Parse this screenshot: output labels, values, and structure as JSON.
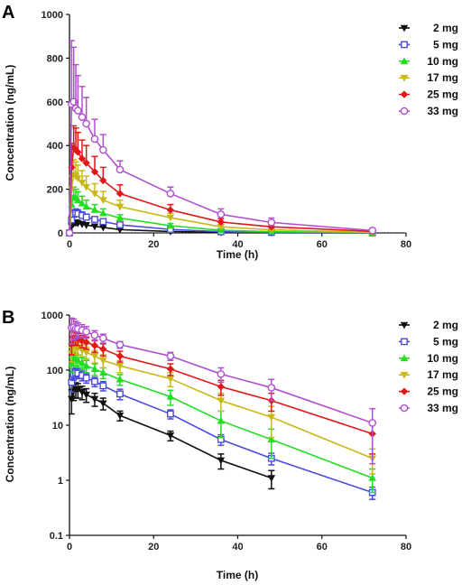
{
  "chart_data": [
    {
      "type": "line",
      "panel": "A",
      "xlabel": "Time (h)",
      "ylabel": "Concentration (ng/mL)",
      "xlim": [
        0,
        80
      ],
      "ylim": [
        0,
        1000
      ],
      "xticks": [
        0,
        20,
        40,
        60,
        80
      ],
      "yticks": [
        0,
        200,
        400,
        600,
        800,
        1000
      ],
      "yscale": "linear",
      "zero_line": "dotted",
      "legend_position": "top-right",
      "x": [
        0,
        0.5,
        1,
        1.5,
        2,
        3,
        4,
        6,
        8,
        12,
        24,
        36,
        48,
        72
      ],
      "series": [
        {
          "name": "2 mg",
          "color": "#111111",
          "marker": "triangle-down",
          "values": [
            0,
            30,
            42,
            45,
            44,
            40,
            36,
            30,
            25,
            15,
            6.5,
            2.3,
            1.1,
            0
          ],
          "errors": [
            0,
            14,
            14,
            14,
            13,
            11,
            10,
            8,
            6,
            3,
            1.3,
            0.7,
            0.4,
            0
          ]
        },
        {
          "name": "5 mg",
          "color": "#4a4ae0",
          "marker": "square-open",
          "values": [
            0,
            60,
            85,
            90,
            88,
            80,
            72,
            62,
            52,
            37,
            16,
            5.5,
            2.5,
            0.6
          ],
          "errors": [
            0,
            20,
            20,
            20,
            18,
            16,
            14,
            12,
            10,
            8,
            3,
            1.2,
            0.6,
            0.15
          ]
        },
        {
          "name": "10 mg",
          "color": "#22dd22",
          "marker": "triangle-up",
          "values": [
            0,
            130,
            165,
            160,
            150,
            135,
            120,
            105,
            90,
            68,
            33,
            12,
            5.5,
            1.1
          ],
          "errors": [
            0,
            40,
            45,
            40,
            38,
            33,
            30,
            25,
            20,
            15,
            10,
            6,
            3,
            0.5
          ]
        },
        {
          "name": "17 mg",
          "color": "#c8b818",
          "marker": "triangle-down",
          "values": [
            0,
            200,
            265,
            260,
            250,
            230,
            210,
            180,
            150,
            120,
            70,
            28,
            14,
            2.5
          ],
          "errors": [
            0,
            60,
            70,
            65,
            60,
            55,
            50,
            45,
            40,
            30,
            20,
            10,
            8,
            1.2
          ]
        },
        {
          "name": "25 mg",
          "color": "#e01818",
          "marker": "diamond",
          "values": [
            0,
            300,
            390,
            380,
            370,
            340,
            320,
            280,
            240,
            180,
            105,
            50,
            28,
            7
          ],
          "errors": [
            0,
            110,
            100,
            100,
            90,
            85,
            80,
            70,
            60,
            40,
            25,
            15,
            10,
            4
          ]
        },
        {
          "name": "33 mg",
          "color": "#b050d0",
          "marker": "circle-open",
          "values": [
            0,
            590,
            600,
            570,
            560,
            530,
            500,
            430,
            380,
            290,
            180,
            85,
            48,
            11
          ],
          "errors": [
            0,
            290,
            250,
            200,
            160,
            140,
            120,
            90,
            70,
            40,
            30,
            25,
            20,
            9
          ]
        }
      ]
    },
    {
      "type": "line",
      "panel": "B",
      "xlabel": "Time (h)",
      "ylabel": "Concentration (ng/mL)",
      "xlim": [
        0,
        80
      ],
      "ylim": [
        0.1,
        1000
      ],
      "xticks": [
        0,
        20,
        40,
        60,
        80
      ],
      "ytick_labels": [
        "0.1",
        "1",
        "10",
        "100",
        "1000"
      ],
      "yscale": "log",
      "legend_position": "right",
      "same_data_as_panel": "A"
    }
  ]
}
